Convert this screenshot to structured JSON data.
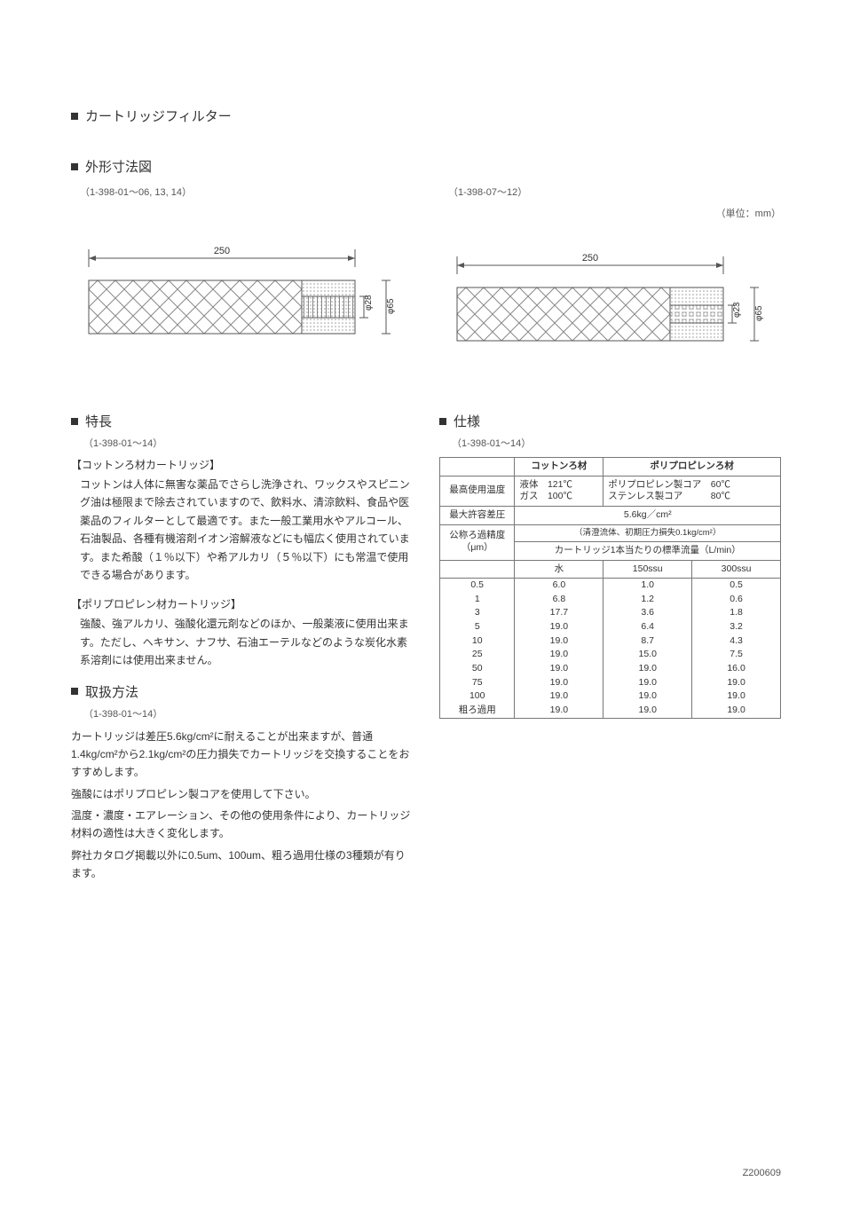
{
  "header": {
    "title": "カートリッジフィルター",
    "dims_title": "外形寸法図",
    "unit_label": "（単位：mm）"
  },
  "drawings": {
    "left": {
      "ref": "（1-398-01～06, 13, 14）",
      "length": "250",
      "dia_inner": "φ28",
      "dia_outer": "φ65"
    },
    "right": {
      "ref": "（1-398-07～12）",
      "length": "250",
      "dia_inner": "φ23",
      "dia_outer": "φ65"
    }
  },
  "features": {
    "title": "特長",
    "ref": "（1-398-01～14）",
    "cotton_heading": "【コットンろ材カートリッジ】",
    "cotton_body": "コットンは人体に無害な薬品でさらし洗浄され、ワックスやスピニング油は極限まで除去されていますので、飲料水、清涼飲料、食品や医薬品のフィルターとして最適です。また一般工業用水やアルコール、石油製品、各種有機溶剤イオン溶解液などにも幅広く使用されています。また希酸（１％以下）や希アルカリ（５％以下）にも常温で使用できる場合があります。",
    "pp_heading": "【ポリプロピレン材カートリッジ】",
    "pp_body": "強酸、強アルカリ、強酸化還元剤などのほか、一般薬液に使用出来ます。ただし、ヘキサン、ナフサ、石油エーテルなどのような炭化水素系溶剤には使用出来ません。"
  },
  "handling": {
    "title": "取扱方法",
    "ref": "（1-398-01～14）",
    "body1": "カートリッジは差圧5.6kg/cm²に耐えることが出来ますが、普通1.4kg/cm²から2.1kg/cm²の圧力損失でカートリッジを交換することをおすすめします。",
    "body2": "強酸にはポリプロピレン製コアを使用して下さい。",
    "body3": "温度・濃度・エアレーション、その他の使用条件により、カートリッジ材料の適性は大きく変化します。",
    "body4": "弊社カタログ掲載以外に0.5um、100um、粗ろ過用仕様の3種類が有ります。"
  },
  "spec": {
    "title": "仕様",
    "ref": "（1-398-01～14）",
    "header_row": {
      "blank": "",
      "cotton": "コットンろ材",
      "pp": "ポリプロピレンろ材"
    },
    "temp_row": {
      "label": "最高使用温度",
      "cotton_l1": "液体　121℃",
      "cotton_l2": "ガス　100℃",
      "pp_l1": "ポリプロピレン製コア　60℃",
      "pp_l2": "ステンレス製コア　　　80℃"
    },
    "maxdp_row": {
      "label": "最大許容差圧",
      "value": "5.6kg／cm²"
    },
    "subheader": {
      "note": "（清澄流体、初期圧力損失0.1kg/cm²）",
      "label": "公称ろ過精度（μm）",
      "caption": "カートリッジ1本当たりの標準流量（L/min）"
    },
    "cols": {
      "c1": "",
      "c2": "水",
      "c3": "150ssu",
      "c4": "300ssu"
    },
    "rows": [
      {
        "um": "0.5",
        "water": "6.0",
        "s150": "1.0",
        "s300": "0.5"
      },
      {
        "um": "1",
        "water": "6.8",
        "s150": "1.2",
        "s300": "0.6"
      },
      {
        "um": "3",
        "water": "17.7",
        "s150": "3.6",
        "s300": "1.8"
      },
      {
        "um": "5",
        "water": "19.0",
        "s150": "6.4",
        "s300": "3.2"
      },
      {
        "um": "10",
        "water": "19.0",
        "s150": "8.7",
        "s300": "4.3"
      },
      {
        "um": "25",
        "water": "19.0",
        "s150": "15.0",
        "s300": "7.5"
      },
      {
        "um": "50",
        "water": "19.0",
        "s150": "19.0",
        "s300": "16.0"
      },
      {
        "um": "75",
        "water": "19.0",
        "s150": "19.0",
        "s300": "19.0"
      },
      {
        "um": "100",
        "water": "19.0",
        "s150": "19.0",
        "s300": "19.0"
      },
      {
        "um": "粗ろ過用",
        "water": "19.0",
        "s150": "19.0",
        "s300": "19.0"
      }
    ]
  },
  "footer": {
    "code": "Z200609"
  },
  "colors": {
    "text": "#333333",
    "line": "#555555",
    "hatch": "#888888",
    "dotfill": "#999999",
    "border": "#777777"
  }
}
